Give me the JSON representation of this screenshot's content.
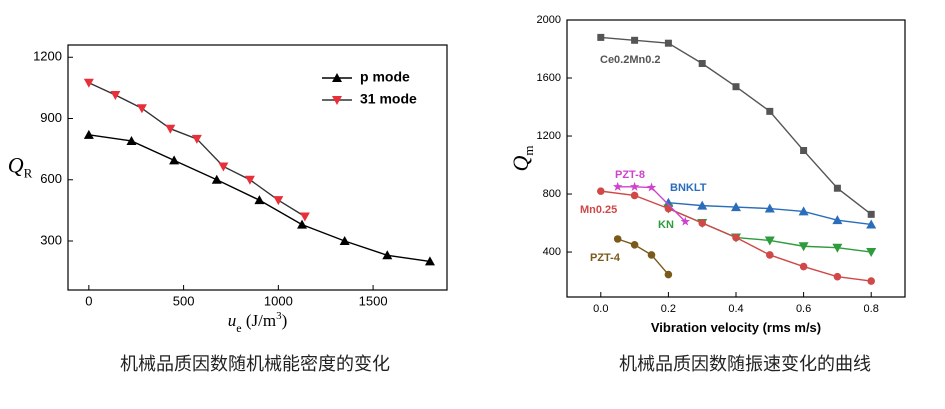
{
  "chart_data": [
    {
      "type": "line",
      "title": "机械品质因数随机械能密度的变化",
      "x_label": [
        "u",
        "e",
        " (J/m",
        "3",
        ")"
      ],
      "y_label": [
        "Q",
        "R"
      ],
      "xlim": [
        -110,
        1890
      ],
      "xticks": [
        0,
        500,
        1000,
        1500
      ],
      "ylim": [
        60,
        1260
      ],
      "yticks": [
        300,
        600,
        900,
        1200
      ],
      "legend": "upper right",
      "series": [
        {
          "name": "p mode",
          "color": "#000000",
          "marker": "triangle-up",
          "x": [
            0,
            225,
            450,
            675,
            900,
            1125,
            1350,
            1575,
            1800
          ],
          "values": [
            820,
            790,
            695,
            600,
            500,
            380,
            300,
            230,
            200
          ]
        },
        {
          "name": "31 mode",
          "color": "#e8303a",
          "line_color": "#333333",
          "marker": "triangle-down",
          "x": [
            0,
            140,
            280,
            430,
            570,
            710,
            850,
            1000,
            1140
          ],
          "values": [
            1075,
            1015,
            950,
            850,
            800,
            665,
            600,
            500,
            420
          ]
        }
      ]
    },
    {
      "type": "line",
      "title": "机械品质因数随振速变化的曲线",
      "x_label": [
        "Vibration velocity (rms m/s)"
      ],
      "y_label": [
        "Q",
        "m"
      ],
      "xlim": [
        -0.1,
        0.9
      ],
      "xticks": [
        {
          "value": 0,
          "label": "0.0"
        },
        0.2,
        0.4,
        0.6,
        0.8
      ],
      "ylim": [
        90,
        2000
      ],
      "yticks": [
        400,
        800,
        1200,
        1600,
        2000
      ],
      "legend": "inline",
      "series": [
        {
          "name": "Ce0.2Mn0.2",
          "color": "#555555",
          "marker": "square",
          "x": [
            0,
            0.1,
            0.2,
            0.3,
            0.4,
            0.5,
            0.6,
            0.7,
            0.8
          ],
          "values": [
            1880,
            1860,
            1840,
            1700,
            1540,
            1370,
            1100,
            840,
            660
          ]
        },
        {
          "name": "BNKLT",
          "color": "#2a6ebb",
          "marker": "triangle-up",
          "x": [
            0.2,
            0.3,
            0.4,
            0.5,
            0.6,
            0.7,
            0.8
          ],
          "values": [
            740,
            720,
            710,
            700,
            680,
            620,
            590
          ]
        },
        {
          "name": "KN",
          "color": "#2e9b3c",
          "marker": "triangle-down",
          "x": [
            0.2,
            0.3,
            0.4,
            0.5,
            0.6,
            0.7,
            0.8
          ],
          "values": [
            700,
            600,
            500,
            480,
            440,
            430,
            400
          ]
        },
        {
          "name": "Mn0.25",
          "color": "#d04848",
          "marker": "circle",
          "x": [
            0,
            0.1,
            0.2,
            0.3,
            0.4,
            0.5,
            0.6,
            0.7,
            0.8
          ],
          "values": [
            820,
            790,
            700,
            600,
            500,
            380,
            300,
            230,
            200
          ]
        },
        {
          "name": "PZT-8",
          "color": "#cc44cc",
          "marker": "star",
          "x": [
            0.05,
            0.1,
            0.15,
            0.25
          ],
          "values": [
            850,
            850,
            845,
            610
          ]
        },
        {
          "name": "PZT-4",
          "color": "#7a5a1a",
          "marker": "circle",
          "x": [
            0.05,
            0.1,
            0.15,
            0.2
          ],
          "values": [
            490,
            450,
            380,
            245
          ]
        }
      ]
    }
  ]
}
